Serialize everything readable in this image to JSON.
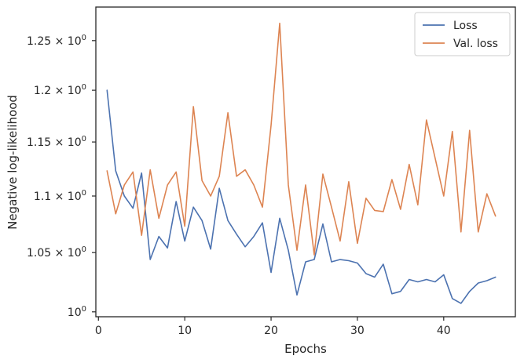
{
  "chart_data": {
    "type": "line",
    "title": "",
    "xlabel": "Epochs",
    "ylabel": "Negative log-likelihood",
    "yscale": "log",
    "xlim": [
      -0.3,
      48.3
    ],
    "ylim": [
      0.996,
      1.285
    ],
    "grid": false,
    "legend_position": "top-right",
    "x_ticks": [
      0,
      10,
      20,
      30,
      40
    ],
    "x_tick_labels": [
      "0",
      "10",
      "20",
      "30",
      "40"
    ],
    "y_ticks": [
      1.0,
      1.05,
      1.1,
      1.15,
      1.2,
      1.25
    ],
    "y_tick_labels": [
      {
        "mantissa": "10",
        "exponent": "0"
      },
      {
        "mantissa": "1.05 × 10",
        "exponent": "0"
      },
      {
        "mantissa": "1.1 × 10",
        "exponent": "0"
      },
      {
        "mantissa": "1.15 × 10",
        "exponent": "0"
      },
      {
        "mantissa": "1.2 × 10",
        "exponent": "0"
      },
      {
        "mantissa": "1.25 × 10",
        "exponent": "0"
      }
    ],
    "x": [
      1,
      2,
      3,
      4,
      5,
      6,
      7,
      8,
      9,
      10,
      11,
      12,
      13,
      14,
      15,
      16,
      17,
      18,
      19,
      20,
      21,
      22,
      23,
      24,
      25,
      26,
      27,
      28,
      29,
      30,
      31,
      32,
      33,
      34,
      35,
      36,
      37,
      38,
      39,
      40,
      41,
      42,
      43,
      44,
      45,
      46
    ],
    "series": [
      {
        "name": "Loss",
        "color": "#4c72b0",
        "values": [
          1.2,
          1.123,
          1.1,
          1.089,
          1.121,
          1.044,
          1.064,
          1.054,
          1.095,
          1.06,
          1.09,
          1.078,
          1.053,
          1.107,
          1.078,
          1.066,
          1.055,
          1.064,
          1.076,
          1.033,
          1.08,
          1.052,
          1.014,
          1.042,
          1.044,
          1.075,
          1.042,
          1.044,
          1.043,
          1.041,
          1.032,
          1.029,
          1.04,
          1.015,
          1.017,
          1.027,
          1.025,
          1.027,
          1.025,
          1.031,
          1.011,
          1.007,
          1.017,
          1.024,
          1.026,
          1.029
        ]
      },
      {
        "name": "Val. loss",
        "color": "#dd8452",
        "values": [
          1.123,
          1.084,
          1.11,
          1.122,
          1.065,
          1.124,
          1.08,
          1.11,
          1.122,
          1.073,
          1.184,
          1.114,
          1.1,
          1.118,
          1.178,
          1.118,
          1.124,
          1.11,
          1.09,
          1.166,
          1.268,
          1.11,
          1.052,
          1.11,
          1.048,
          1.12,
          1.09,
          1.06,
          1.113,
          1.058,
          1.098,
          1.087,
          1.086,
          1.115,
          1.088,
          1.129,
          1.092,
          1.171,
          1.135,
          1.1,
          1.16,
          1.068,
          1.161,
          1.068,
          1.102,
          1.082
        ]
      }
    ]
  }
}
